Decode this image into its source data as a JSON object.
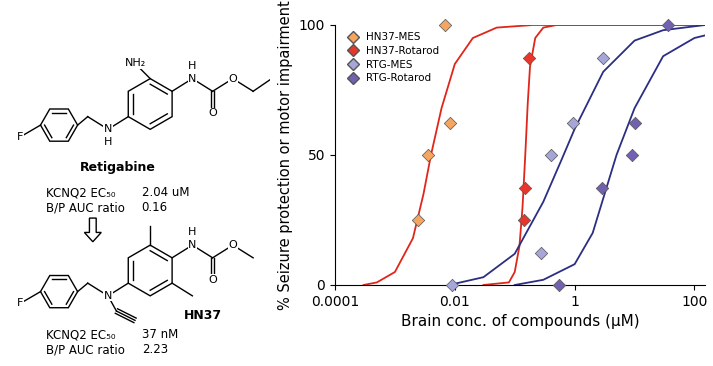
{
  "diagram": {
    "molecules": [
      {
        "name": "Retigabine",
        "atoms": [
          "NH₂",
          "H",
          "N",
          "O",
          "O",
          "N",
          "H",
          "F"
        ],
        "properties": [
          {
            "label": "KCNQ2 EC₅₀",
            "value": "2.04 uM"
          },
          {
            "label": "B/P AUC ratio",
            "value": "0.16"
          }
        ]
      },
      {
        "name": "HN37",
        "atoms": [
          "H",
          "N",
          "O",
          "O",
          "N",
          "F"
        ],
        "properties": [
          {
            "label": "KCNQ2 EC₅₀",
            "value": "37 nM"
          },
          {
            "label": "B/P AUC ratio",
            "value": "2.23"
          }
        ]
      }
    ]
  },
  "chart_data": {
    "type": "scatter",
    "xlabel": "Brain conc. of compounds (μM)",
    "ylabel": "% Seizure protection or motor impairment",
    "log": "x",
    "xlim": [
      0.0001,
      150
    ],
    "xticks": [
      0.0001,
      0.01,
      1,
      100
    ],
    "ylim": [
      0,
      100
    ],
    "yticks": [
      0,
      50,
      100
    ],
    "legend": "upper left",
    "series": [
      {
        "name": "HN37-MES",
        "color": "#f5a55f",
        "marker": "diamond",
        "x": [
          0.0024,
          0.0036,
          0.0083,
          0.0068
        ],
        "values": [
          25,
          50,
          62.5,
          100
        ],
        "fit": {
          "color": "#e0261b",
          "x": [
            0.0003,
            0.0005,
            0.001,
            0.002,
            0.003,
            0.004,
            0.006,
            0.01,
            0.02,
            0.05,
            0.2,
            1,
            150
          ],
          "values": [
            0,
            1,
            5,
            18,
            35,
            50,
            68,
            85,
            95,
            99,
            100,
            100,
            100
          ]
        }
      },
      {
        "name": "HN37-Rotarod",
        "color": "#e8362a",
        "marker": "diamond",
        "x": [
          0.144,
          0.15,
          0.17
        ],
        "values": [
          25,
          37.5,
          87.5
        ],
        "fit": {
          "color": "#e0261b",
          "x": [
            0.03,
            0.08,
            0.1,
            0.12,
            0.135,
            0.15,
            0.165,
            0.18,
            0.22,
            0.3,
            0.5,
            150
          ],
          "values": [
            0,
            1,
            5,
            15,
            30,
            50,
            70,
            84,
            95,
            99,
            100,
            100
          ]
        }
      },
      {
        "name": "RTG-MES",
        "color": "#a6a6d8",
        "marker": "diamond",
        "x": [
          0.0089,
          0.27,
          0.4,
          0.93,
          3.0
        ],
        "values": [
          0,
          12.5,
          50,
          62.5,
          87.5
        ],
        "fit": {
          "color": "#2b2e83",
          "x": [
            0.01,
            0.03,
            0.1,
            0.3,
            0.6,
            1,
            3,
            10,
            30,
            150
          ],
          "values": [
            0.5,
            3,
            12,
            32,
            48,
            60,
            82,
            94,
            98,
            100
          ]
        }
      },
      {
        "name": "RTG-Rotarod",
        "color": "#7260b0",
        "marker": "diamond",
        "x": [
          0.54,
          2.9,
          9.1,
          10.2,
          35.8
        ],
        "values": [
          0,
          37.5,
          50,
          62.5,
          100
        ],
        "fit": {
          "color": "#2b2e83",
          "x": [
            0.1,
            0.3,
            1,
            2,
            5,
            10,
            30,
            100,
            150
          ],
          "values": [
            0,
            2,
            8,
            20,
            50,
            68,
            88,
            95,
            96
          ]
        }
      }
    ]
  }
}
